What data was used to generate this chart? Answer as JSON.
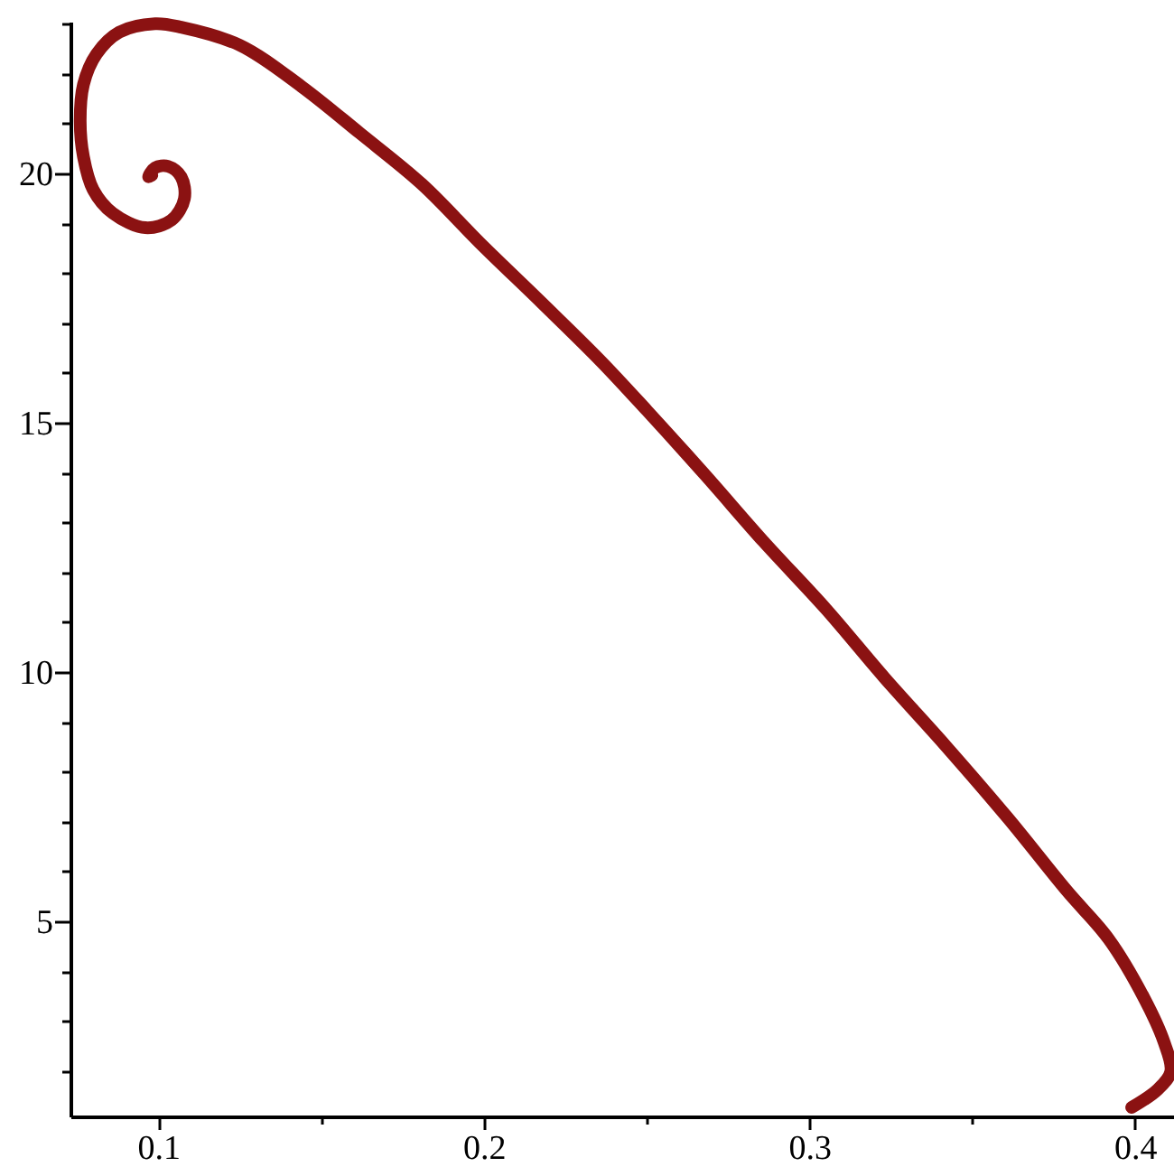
{
  "chart_data": {
    "type": "line",
    "x": [
      0.399,
      0.407,
      0.411,
      0.409,
      0.403,
      0.392,
      0.379,
      0.361,
      0.342,
      0.323,
      0.305,
      0.286,
      0.268,
      0.25,
      0.236,
      0.218,
      0.199,
      0.181,
      0.162,
      0.144,
      0.125,
      0.107,
      0.099,
      0.088,
      0.081,
      0.077,
      0.076,
      0.077,
      0.08,
      0.086,
      0.096,
      0.104,
      0.108,
      0.107,
      0.103,
      0.099,
      0.097,
      0.098
    ],
    "series": [
      {
        "color": "#8b1212",
        "values": [
          1.27,
          1.63,
          1.99,
          2.57,
          3.44,
          4.64,
          5.62,
          7.07,
          8.51,
          9.89,
          11.27,
          12.61,
          13.95,
          15.25,
          16.23,
          17.39,
          18.59,
          19.78,
          20.8,
          21.74,
          22.57,
          22.93,
          23.0,
          22.83,
          22.39,
          21.78,
          21.05,
          20.33,
          19.67,
          19.2,
          18.91,
          19.06,
          19.49,
          19.93,
          20.14,
          20.11,
          19.93,
          19.96
        ]
      }
    ],
    "xlim": [
      0.073,
      0.412
    ],
    "ylim": [
      1.09,
      23.04
    ],
    "xticks": [
      0.1,
      {
        "value": 0.15,
        "label": null
      },
      0.2,
      {
        "value": 0.25,
        "label": null
      },
      0.3,
      {
        "value": 0.35,
        "label": null
      },
      0.4
    ],
    "yticks": [
      {
        "value": 2,
        "label": null
      },
      {
        "value": 3,
        "label": null
      },
      {
        "value": 4,
        "label": null
      },
      5,
      {
        "value": 6,
        "label": null
      },
      {
        "value": 7,
        "label": null
      },
      {
        "value": 8,
        "label": null
      },
      {
        "value": 9,
        "label": null
      },
      10,
      {
        "value": 11,
        "label": null
      },
      {
        "value": 12,
        "label": null
      },
      {
        "value": 13,
        "label": null
      },
      {
        "value": 14,
        "label": null
      },
      15,
      {
        "value": 16,
        "label": null
      },
      {
        "value": 17,
        "label": null
      },
      {
        "value": 18,
        "label": null
      },
      {
        "value": 19,
        "label": null
      },
      20,
      {
        "value": 21,
        "label": null
      },
      {
        "value": 22,
        "label": null
      },
      {
        "value": 23,
        "label": null
      }
    ]
  }
}
